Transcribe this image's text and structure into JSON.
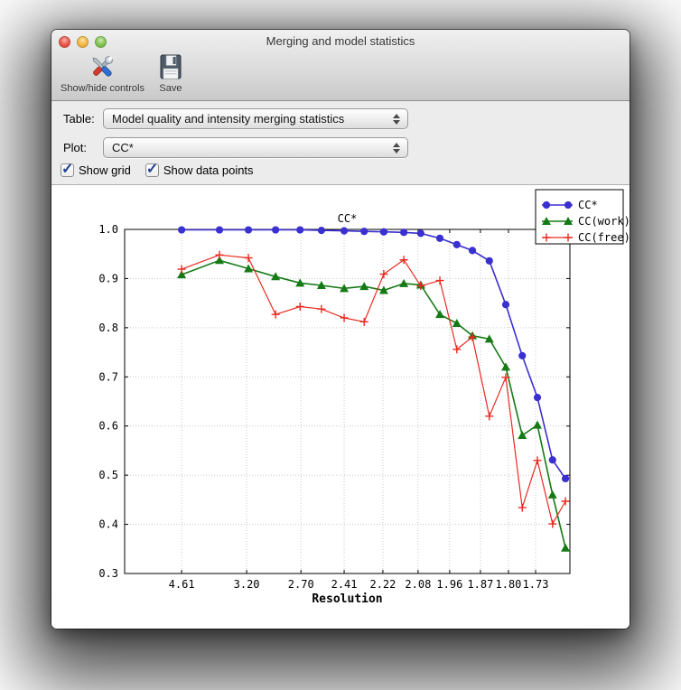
{
  "window": {
    "title": "Merging and model statistics"
  },
  "toolbar": {
    "show_hide_label": "Show/hide controls",
    "save_label": "Save"
  },
  "controls": {
    "table_label": "Table:",
    "table_value": "Model quality and intensity merging statistics",
    "plot_label": "Plot:",
    "plot_value": "CC*",
    "checkboxes": [
      {
        "label": "Show grid",
        "checked": true
      },
      {
        "label": "Show data points",
        "checked": true
      }
    ]
  },
  "chart_data": {
    "type": "line",
    "title": "CC*",
    "xlabel": "Resolution",
    "ylabel": "",
    "ylim": [
      0.3,
      1.0
    ],
    "grid": true,
    "legend_position": "top-right",
    "ytick_labels": [
      "1.0",
      "0.9",
      "0.8",
      "0.7",
      "0.6",
      "0.5",
      "0.4",
      "0.3"
    ],
    "ytick_values": [
      1.0,
      0.9,
      0.8,
      0.7,
      0.6,
      0.5,
      0.4,
      0.3
    ],
    "xticks": [
      {
        "label": "4.61",
        "pos": 0.128
      },
      {
        "label": "3.20",
        "pos": 0.274
      },
      {
        "label": "2.70",
        "pos": 0.396
      },
      {
        "label": "2.41",
        "pos": 0.493
      },
      {
        "label": "2.22",
        "pos": 0.58
      },
      {
        "label": "2.08",
        "pos": 0.659
      },
      {
        "label": "1.96",
        "pos": 0.73
      },
      {
        "label": "1.87",
        "pos": 0.799
      },
      {
        "label": "1.80",
        "pos": 0.862
      },
      {
        "label": "1.73",
        "pos": 0.923
      }
    ],
    "x_positions": [
      0.128,
      0.213,
      0.278,
      0.339,
      0.394,
      0.442,
      0.493,
      0.538,
      0.582,
      0.627,
      0.665,
      0.708,
      0.746,
      0.781,
      0.819,
      0.856,
      0.893,
      0.927,
      0.961,
      0.99
    ],
    "series": [
      {
        "name": "CC*",
        "color": "#3a2fd0",
        "marker": "circle",
        "values": [
          0.999,
          0.999,
          0.999,
          0.999,
          0.999,
          0.998,
          0.997,
          0.996,
          0.995,
          0.994,
          0.992,
          0.982,
          0.969,
          0.957,
          0.936,
          0.847,
          0.743,
          0.658,
          0.531,
          0.493
        ]
      },
      {
        "name": "CC(work)",
        "color": "#157a15",
        "marker": "triangle",
        "values": [
          0.908,
          0.937,
          0.92,
          0.904,
          0.891,
          0.886,
          0.88,
          0.884,
          0.876,
          0.89,
          0.887,
          0.827,
          0.809,
          0.784,
          0.777,
          0.72,
          0.581,
          0.602,
          0.46,
          0.352
        ]
      },
      {
        "name": "CC(free)",
        "color": "#e92a20",
        "marker": "plus",
        "values": [
          0.919,
          0.948,
          0.942,
          0.827,
          0.843,
          0.838,
          0.82,
          0.812,
          0.909,
          0.938,
          0.885,
          0.896,
          0.756,
          0.781,
          0.62,
          0.699,
          0.434,
          0.53,
          0.401,
          0.447
        ]
      }
    ]
  }
}
